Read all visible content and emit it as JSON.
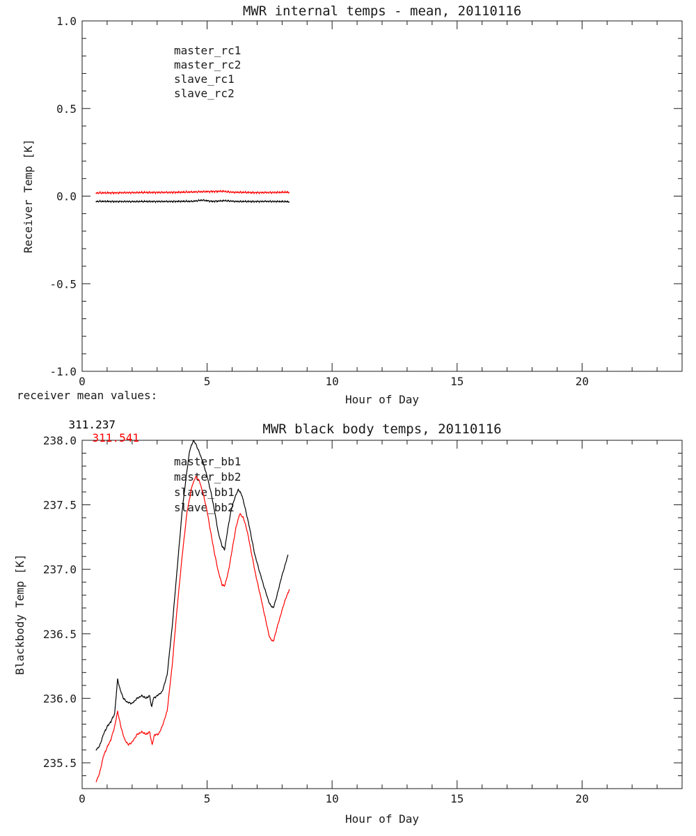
{
  "page": {
    "background": "#ffffff",
    "text_color": "#1a1a1a"
  },
  "annotations": {
    "receiver_mean_label": "receiver mean values:",
    "values": [
      {
        "text": "311.237",
        "color": "#000000"
      },
      {
        "text": "311.541",
        "color": "#ff0000"
      }
    ]
  },
  "chart_data": [
    {
      "type": "line",
      "title": "MWR internal temps - mean, 20110116",
      "xlabel": "Hour of Day",
      "ylabel": "Receiver Temp [K]",
      "xlim": [
        0,
        24
      ],
      "ylim": [
        -1.0,
        1.0
      ],
      "grid": false,
      "legend_position": "inside-top-left",
      "xticks": {
        "values": [
          0,
          5,
          10,
          15,
          20
        ],
        "labels": [
          "0",
          "5",
          "10",
          "15",
          "20"
        ],
        "minor_step": 1
      },
      "yticks": {
        "values": [
          -1.0,
          -0.5,
          0.0,
          0.5,
          1.0
        ],
        "labels": [
          "-1.0",
          "-0.5",
          "0.0",
          "0.5",
          "1.0"
        ],
        "minor_step": 0.1
      },
      "legend": [
        {
          "label": "master_rc1",
          "color": "#000000"
        },
        {
          "label": "master_rc2",
          "color": "#ff0000"
        },
        {
          "label": "slave_rc1",
          "color": "#0000ff"
        },
        {
          "label": "slave_rc2",
          "color": "#00cc00"
        }
      ],
      "series": [
        {
          "name": "master_rc1",
          "color": "#000000",
          "noise": 0.006,
          "x": [
            0.55,
            2.0,
            4.4,
            4.8,
            5.2,
            5.7,
            6.2,
            7.5,
            8.3
          ],
          "y": [
            -0.03,
            -0.031,
            -0.03,
            -0.023,
            -0.03,
            -0.026,
            -0.031,
            -0.03,
            -0.032
          ]
        },
        {
          "name": "master_rc2",
          "color": "#ff0000",
          "noise": 0.007,
          "x": [
            0.55,
            2.0,
            4.0,
            5.6,
            6.0,
            7.0,
            8.3
          ],
          "y": [
            0.018,
            0.02,
            0.022,
            0.028,
            0.022,
            0.02,
            0.022
          ]
        }
      ]
    },
    {
      "type": "line",
      "title": "MWR black body temps, 20110116",
      "xlabel": "Hour of Day",
      "ylabel": "Blackbody Temp [K]",
      "xlim": [
        0,
        24
      ],
      "ylim": [
        235.3,
        238.0
      ],
      "grid": false,
      "legend_position": "inside-top-left",
      "xticks": {
        "values": [
          0,
          5,
          10,
          15,
          20
        ],
        "labels": [
          "0",
          "5",
          "10",
          "15",
          "20"
        ],
        "minor_step": 1
      },
      "yticks": {
        "values": [
          235.5,
          236.0,
          236.5,
          237.0,
          237.5,
          238.0
        ],
        "labels": [
          "235.5",
          "236.0",
          "236.5",
          "237.0",
          "237.5",
          "238.0"
        ],
        "minor_step": 0.1
      },
      "legend": [
        {
          "label": "master_bb1",
          "color": "#000000"
        },
        {
          "label": "master_bb2",
          "color": "#ff0000"
        },
        {
          "label": "slave_bb1",
          "color": "#0000ff"
        },
        {
          "label": "slave_bb2",
          "color": "#00cc00"
        }
      ],
      "series": [
        {
          "name": "master_bb1",
          "color": "#000000",
          "noise": 0.008,
          "x": [
            0.55,
            0.7,
            0.85,
            1.0,
            1.15,
            1.3,
            1.42,
            1.5,
            1.65,
            1.8,
            2.0,
            2.2,
            2.4,
            2.55,
            2.7,
            2.78,
            2.85,
            3.0,
            3.2,
            3.4,
            3.6,
            3.8,
            4.0,
            4.15,
            4.3,
            4.45,
            4.55,
            4.7,
            4.85,
            5.0,
            5.15,
            5.3,
            5.45,
            5.6,
            5.7,
            5.8,
            5.95,
            6.1,
            6.25,
            6.4,
            6.55,
            6.7,
            6.9,
            7.1,
            7.3,
            7.5,
            7.65,
            7.8,
            7.95,
            8.1,
            8.25
          ],
          "y": [
            235.6,
            235.63,
            235.72,
            235.78,
            235.82,
            235.88,
            236.15,
            236.08,
            236.0,
            235.97,
            235.96,
            236.0,
            236.02,
            236.0,
            236.02,
            235.93,
            236.0,
            236.02,
            236.05,
            236.18,
            236.55,
            237.0,
            237.45,
            237.7,
            237.92,
            238.0,
            237.97,
            237.9,
            237.82,
            237.72,
            237.6,
            237.45,
            237.28,
            237.18,
            237.15,
            237.28,
            237.45,
            237.55,
            237.62,
            237.57,
            237.45,
            237.32,
            237.12,
            236.98,
            236.85,
            236.73,
            236.7,
            236.8,
            236.92,
            237.02,
            237.12
          ]
        },
        {
          "name": "master_bb2",
          "color": "#ff0000",
          "noise": 0.008,
          "x": [
            0.55,
            0.7,
            0.85,
            1.0,
            1.15,
            1.3,
            1.42,
            1.55,
            1.7,
            1.85,
            2.0,
            2.2,
            2.4,
            2.55,
            2.7,
            2.8,
            2.9,
            3.05,
            3.2,
            3.4,
            3.6,
            3.8,
            4.0,
            4.2,
            4.4,
            4.55,
            4.7,
            4.85,
            5.0,
            5.15,
            5.3,
            5.45,
            5.6,
            5.7,
            5.85,
            6.0,
            6.15,
            6.3,
            6.45,
            6.6,
            6.75,
            6.95,
            7.15,
            7.35,
            7.5,
            7.65,
            7.8,
            7.95,
            8.1,
            8.3
          ],
          "y": [
            235.35,
            235.42,
            235.55,
            235.62,
            235.68,
            235.78,
            235.9,
            235.78,
            235.68,
            235.64,
            235.66,
            235.72,
            235.74,
            235.72,
            235.74,
            235.64,
            235.72,
            235.72,
            235.78,
            235.9,
            236.25,
            236.7,
            237.1,
            237.45,
            237.65,
            237.72,
            237.68,
            237.58,
            237.45,
            237.28,
            237.12,
            236.98,
            236.88,
            236.87,
            236.98,
            237.15,
            237.32,
            237.43,
            237.4,
            237.3,
            237.15,
            236.95,
            236.78,
            236.6,
            236.47,
            236.44,
            236.55,
            236.65,
            236.75,
            236.85
          ]
        }
      ]
    }
  ]
}
